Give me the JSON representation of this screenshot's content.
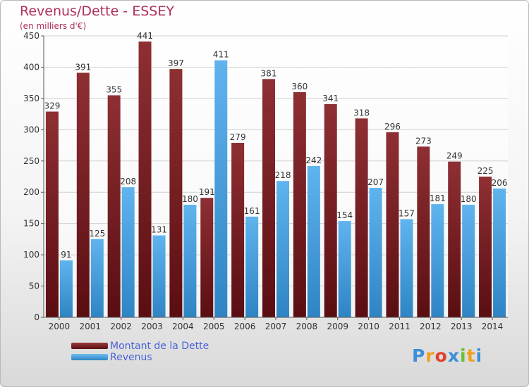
{
  "header": {
    "title": "Revenus/Dette - ESSEY",
    "subtitle": "(en milliers d'€)"
  },
  "colors": {
    "dette": "#7a1f24",
    "revenus": "#4fa8e6",
    "title": "#b0305a"
  },
  "chart_data": {
    "type": "bar",
    "categories": [
      "2000",
      "2001",
      "2002",
      "2003",
      "2004",
      "2005",
      "2006",
      "2007",
      "2008",
      "2009",
      "2010",
      "2011",
      "2012",
      "2013",
      "2014"
    ],
    "series": [
      {
        "name": "Montant de la Dette",
        "values": [
          329,
          391,
          355,
          441,
          397,
          191,
          279,
          381,
          360,
          341,
          318,
          296,
          273,
          249,
          225
        ]
      },
      {
        "name": "Revenus",
        "values": [
          91,
          125,
          208,
          131,
          180,
          411,
          161,
          218,
          242,
          154,
          207,
          157,
          181,
          180,
          206
        ]
      }
    ],
    "ylim": [
      0,
      450
    ],
    "yticks": [
      0,
      50,
      100,
      150,
      200,
      250,
      300,
      350,
      400,
      450
    ],
    "grid": true,
    "legend": "bottom-left"
  },
  "logo": {
    "letters": [
      "P",
      "r",
      "o",
      "x",
      "i",
      "t",
      "i"
    ]
  }
}
